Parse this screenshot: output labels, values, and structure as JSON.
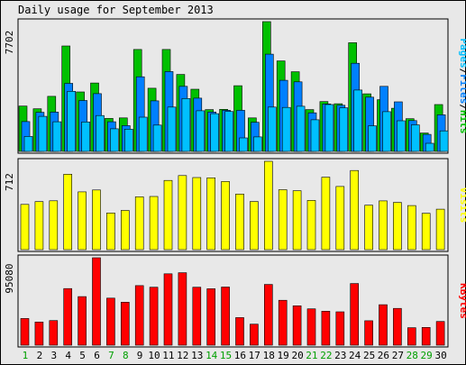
{
  "chart_data": {
    "type": "bar",
    "title": "Daily usage for September 2013",
    "categories": [
      "1",
      "2",
      "3",
      "4",
      "5",
      "6",
      "7",
      "8",
      "9",
      "10",
      "11",
      "12",
      "13",
      "14",
      "15",
      "16",
      "17",
      "18",
      "19",
      "20",
      "21",
      "22",
      "23",
      "24",
      "25",
      "26",
      "27",
      "28",
      "29",
      "30"
    ],
    "weekend_days": [
      "1",
      "7",
      "8",
      "14",
      "15",
      "21",
      "22",
      "28",
      "29"
    ],
    "colors": {
      "hits": "#00c000",
      "files": "#0080ff",
      "pages": "#00c0ff",
      "visits": "#ffff00",
      "kbytes": "#ff0000",
      "weekend_label": "#00a000",
      "weekday_label": "#000000"
    },
    "panels": [
      {
        "id": "hits-files-pages",
        "label": "Pages/Files/Hits",
        "max_label": "7702",
        "max": 7702,
        "series": [
          {
            "name": "Hits",
            "color": "#00c000",
            "values": [
              2690,
              2530,
              3270,
              6260,
              3530,
              4060,
              1960,
              1990,
              6050,
              3750,
              6050,
              4570,
              3690,
              2480,
              2500,
              3900,
              1990,
              7702,
              5370,
              4730,
              2480,
              2960,
              2830,
              6450,
              3420,
              3070,
              2560,
              1940,
              1090,
              2780
            ]
          },
          {
            "name": "Files",
            "color": "#0080ff",
            "values": [
              1770,
              2320,
              2330,
              4040,
              3020,
              3430,
              1760,
              1530,
              4430,
              3000,
              4740,
              3860,
              3160,
              2340,
              2440,
              2440,
              1730,
              5770,
              4220,
              4130,
              2290,
              2820,
              2740,
              5230,
              3220,
              3860,
              2940,
              1830,
              1010,
              2170
            ]
          },
          {
            "name": "Pages",
            "color": "#00c0ff",
            "values": [
              890,
              2080,
              1760,
              3570,
              1750,
              2130,
              1340,
              1320,
              2030,
              1560,
              2630,
              3140,
              2410,
              2240,
              2370,
              800,
              860,
              2630,
              2610,
              2680,
              1880,
              2780,
              2590,
              3640,
              1520,
              2360,
              1820,
              1580,
              480,
              1220
            ]
          }
        ]
      },
      {
        "id": "visits",
        "label": "Visits",
        "max_label": "712",
        "max": 712,
        "series": [
          {
            "name": "Visits",
            "color": "#ffff00",
            "values": [
              365,
              387,
              394,
              608,
              466,
              481,
              296,
              316,
              426,
              429,
              558,
              597,
              581,
              579,
              549,
              448,
              388,
              712,
              483,
              475,
              397,
              584,
              509,
              638,
              358,
              393,
              381,
              355,
              293,
              326
            ]
          }
        ]
      },
      {
        "id": "kbytes",
        "label": "KBytes",
        "max_label": "95080",
        "max": 95080,
        "series": [
          {
            "name": "KBytes",
            "color": "#ff0000",
            "values": [
              29000,
              25200,
              26800,
              61600,
              52800,
              95080,
              51200,
              46800,
              64800,
              63000,
              77600,
              78800,
              63000,
              61400,
              63200,
              30000,
              22800,
              66100,
              48800,
              42800,
              39500,
              37000,
              36300,
              67000,
              26600,
              44000,
              40000,
              19000,
              19300,
              25800
            ]
          }
        ]
      }
    ]
  }
}
